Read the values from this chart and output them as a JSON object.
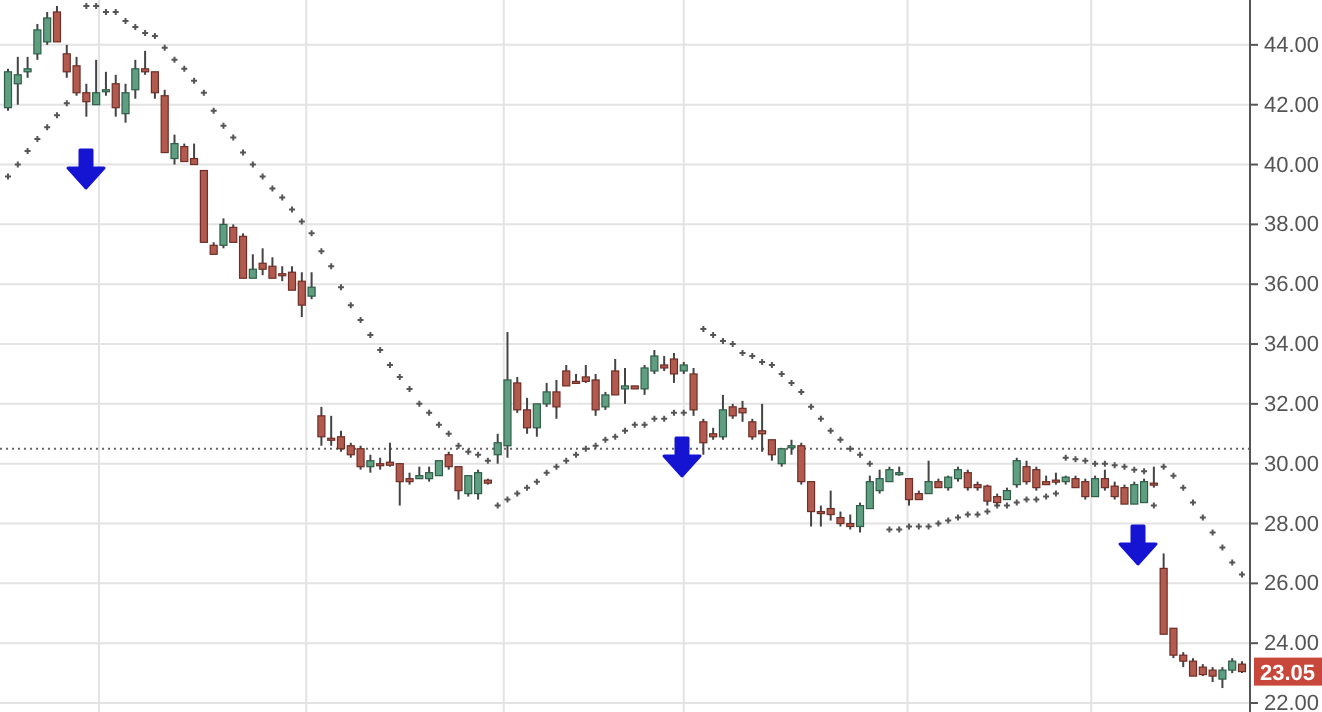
{
  "chart_data": {
    "type": "candlestick",
    "categories": [
      null,
      null,
      null,
      null,
      null,
      null,
      null,
      null,
      null,
      null,
      null,
      null,
      null,
      null,
      null,
      null,
      null,
      null,
      null,
      null,
      null,
      null,
      null,
      null,
      null,
      null,
      null,
      null,
      null,
      null,
      null,
      null,
      null,
      null,
      null,
      null,
      null,
      null,
      null,
      null,
      null,
      null,
      null,
      null,
      null,
      null,
      null,
      null,
      null,
      null,
      null,
      null,
      null,
      null,
      null,
      null,
      null,
      null,
      null,
      null,
      null,
      null,
      null,
      null,
      null,
      null,
      null,
      null,
      null,
      null,
      null,
      null,
      null,
      null,
      null,
      null,
      null,
      null,
      null,
      null,
      null,
      null,
      null,
      null,
      null,
      null,
      null,
      null,
      null,
      null,
      null,
      null,
      null,
      null,
      null,
      null,
      null,
      null,
      null,
      null,
      null,
      null,
      null,
      null,
      null,
      null,
      null,
      null,
      null,
      null,
      null,
      null,
      null,
      null,
      null,
      null,
      null,
      null,
      null,
      null,
      null,
      null,
      null,
      null,
      null,
      null,
      null
    ],
    "ohlc": [
      [
        41.9,
        43.2,
        41.8,
        43.1
      ],
      [
        42.7,
        43.6,
        42.0,
        43.0
      ],
      [
        43.1,
        43.6,
        42.9,
        43.2
      ],
      [
        43.7,
        44.7,
        43.5,
        44.5
      ],
      [
        44.1,
        45.1,
        44.0,
        44.9
      ],
      [
        45.1,
        45.3,
        44.1,
        44.1
      ],
      [
        43.7,
        44.0,
        42.9,
        43.1
      ],
      [
        43.3,
        43.6,
        42.3,
        42.4
      ],
      [
        42.4,
        42.7,
        41.6,
        42.1
      ],
      [
        42.0,
        43.5,
        42.0,
        42.4
      ],
      [
        42.5,
        43.1,
        42.3,
        42.5
      ],
      [
        42.7,
        43.0,
        41.6,
        41.9
      ],
      [
        41.7,
        42.7,
        41.4,
        42.4
      ],
      [
        42.5,
        43.5,
        42.2,
        43.2
      ],
      [
        43.2,
        43.8,
        43.0,
        43.1
      ],
      [
        43.1,
        43.1,
        42.2,
        42.4
      ],
      [
        42.3,
        42.5,
        40.4,
        40.4
      ],
      [
        40.2,
        41.0,
        40.0,
        40.7
      ],
      [
        40.6,
        40.7,
        40.1,
        40.1
      ],
      [
        40.2,
        40.7,
        40.0,
        40.0
      ],
      [
        39.8,
        39.8,
        37.4,
        37.4
      ],
      [
        37.3,
        37.4,
        37.0,
        37.0
      ],
      [
        37.3,
        38.2,
        37.2,
        38.0
      ],
      [
        37.9,
        38.0,
        37.4,
        37.4
      ],
      [
        37.6,
        37.7,
        36.2,
        36.2
      ],
      [
        36.2,
        37.0,
        36.2,
        36.5
      ],
      [
        36.7,
        37.2,
        36.3,
        36.5
      ],
      [
        36.6,
        36.9,
        36.2,
        36.2
      ],
      [
        36.35,
        36.6,
        36.1,
        36.3
      ],
      [
        36.4,
        36.6,
        35.8,
        35.8
      ],
      [
        36.1,
        36.4,
        34.9,
        35.3
      ],
      [
        35.6,
        36.4,
        35.5,
        35.9
      ],
      [
        31.6,
        31.9,
        30.6,
        30.9
      ],
      [
        30.85,
        31.6,
        30.6,
        30.8
      ],
      [
        30.9,
        31.1,
        30.4,
        30.5
      ],
      [
        30.6,
        30.7,
        30.2,
        30.3
      ],
      [
        30.5,
        30.6,
        29.8,
        29.9
      ],
      [
        29.9,
        30.3,
        29.7,
        30.1
      ],
      [
        30.0,
        30.2,
        29.8,
        29.95
      ],
      [
        30.05,
        30.7,
        29.9,
        29.95
      ],
      [
        30.0,
        30.0,
        28.6,
        29.4
      ],
      [
        29.5,
        29.7,
        29.3,
        29.4
      ],
      [
        29.5,
        29.9,
        29.5,
        29.6
      ],
      [
        29.5,
        29.9,
        29.4,
        29.7
      ],
      [
        29.6,
        30.1,
        29.6,
        30.1
      ],
      [
        30.3,
        30.4,
        29.8,
        29.9
      ],
      [
        29.9,
        29.9,
        28.8,
        29.1
      ],
      [
        29.0,
        29.6,
        28.9,
        29.6
      ],
      [
        29.0,
        29.8,
        28.8,
        29.7
      ],
      [
        29.45,
        29.5,
        29.3,
        29.35
      ],
      [
        30.3,
        31.0,
        30.0,
        30.7
      ],
      [
        30.6,
        34.4,
        30.2,
        32.8
      ],
      [
        32.7,
        32.9,
        31.7,
        31.8
      ],
      [
        31.8,
        32.2,
        31.0,
        31.2
      ],
      [
        31.2,
        32.0,
        30.9,
        32.0
      ],
      [
        32.0,
        32.7,
        31.9,
        32.4
      ],
      [
        32.4,
        32.8,
        31.5,
        31.9
      ],
      [
        33.1,
        33.3,
        32.6,
        32.6
      ],
      [
        32.75,
        33.0,
        32.7,
        32.7
      ],
      [
        32.9,
        33.3,
        32.7,
        32.75
      ],
      [
        32.8,
        33.0,
        31.6,
        31.8
      ],
      [
        31.9,
        32.4,
        31.8,
        32.3
      ],
      [
        33.1,
        33.5,
        32.3,
        32.3
      ],
      [
        32.5,
        33.2,
        32.0,
        32.6
      ],
      [
        32.6,
        32.6,
        32.5,
        32.5
      ],
      [
        32.5,
        33.3,
        32.3,
        33.2
      ],
      [
        33.1,
        33.8,
        33.0,
        33.6
      ],
      [
        33.3,
        33.6,
        33.1,
        33.2
      ],
      [
        33.5,
        33.7,
        32.7,
        33.0
      ],
      [
        33.1,
        33.4,
        33.0,
        33.3
      ],
      [
        33.0,
        33.2,
        31.6,
        31.8
      ],
      [
        31.4,
        31.5,
        30.3,
        30.7
      ],
      [
        31.0,
        31.2,
        30.8,
        30.9
      ],
      [
        30.9,
        32.3,
        30.8,
        31.8
      ],
      [
        31.9,
        32.0,
        31.5,
        31.6
      ],
      [
        31.85,
        32.1,
        31.4,
        31.7
      ],
      [
        31.4,
        31.5,
        30.8,
        30.9
      ],
      [
        31.1,
        32.0,
        30.4,
        31.0
      ],
      [
        30.8,
        30.8,
        30.1,
        30.3
      ],
      [
        30.0,
        30.5,
        29.9,
        30.5
      ],
      [
        30.55,
        30.8,
        30.3,
        30.6
      ],
      [
        30.6,
        30.7,
        29.3,
        29.4
      ],
      [
        29.4,
        29.4,
        27.9,
        28.4
      ],
      [
        28.4,
        28.6,
        27.9,
        28.35
      ],
      [
        28.5,
        29.1,
        28.1,
        28.3
      ],
      [
        28.2,
        28.4,
        27.9,
        28.0
      ],
      [
        28.0,
        28.3,
        27.8,
        27.9
      ],
      [
        27.9,
        28.7,
        27.7,
        28.6
      ],
      [
        28.5,
        29.6,
        28.5,
        29.4
      ],
      [
        29.1,
        29.8,
        29.0,
        29.5
      ],
      [
        29.4,
        29.9,
        29.4,
        29.8
      ],
      [
        29.65,
        29.9,
        29.6,
        29.7
      ],
      [
        29.5,
        29.5,
        28.6,
        28.8
      ],
      [
        29.0,
        29.1,
        28.8,
        28.8
      ],
      [
        29.0,
        30.1,
        29.0,
        29.4
      ],
      [
        29.4,
        29.5,
        29.2,
        29.2
      ],
      [
        29.2,
        29.6,
        29.1,
        29.55
      ],
      [
        29.5,
        29.9,
        29.4,
        29.8
      ],
      [
        29.7,
        29.8,
        29.1,
        29.2
      ],
      [
        29.3,
        29.4,
        29.1,
        29.2
      ],
      [
        29.25,
        29.3,
        28.6,
        28.75
      ],
      [
        28.9,
        29.0,
        28.6,
        28.7
      ],
      [
        28.8,
        29.2,
        28.8,
        29.1
      ],
      [
        29.3,
        30.2,
        29.2,
        30.1
      ],
      [
        29.9,
        30.1,
        29.3,
        29.4
      ],
      [
        29.8,
        29.9,
        29.1,
        29.2
      ],
      [
        29.4,
        29.6,
        29.3,
        29.3
      ],
      [
        29.45,
        29.7,
        29.3,
        29.4
      ],
      [
        29.4,
        29.6,
        29.3,
        29.55
      ],
      [
        29.5,
        29.6,
        29.2,
        29.2
      ],
      [
        29.4,
        29.5,
        28.8,
        28.9
      ],
      [
        28.9,
        29.6,
        28.9,
        29.5
      ],
      [
        29.5,
        29.8,
        29.1,
        29.2
      ],
      [
        29.25,
        29.4,
        28.8,
        28.9
      ],
      [
        29.2,
        29.3,
        28.65,
        28.65
      ],
      [
        28.65,
        29.4,
        28.65,
        29.3
      ],
      [
        28.7,
        29.5,
        28.7,
        29.4
      ],
      [
        29.35,
        29.9,
        29.2,
        29.3
      ],
      [
        26.5,
        27.0,
        24.3,
        24.3
      ],
      [
        24.5,
        24.5,
        23.5,
        23.6
      ],
      [
        23.6,
        23.7,
        23.2,
        23.4
      ],
      [
        23.4,
        23.5,
        22.9,
        22.9
      ],
      [
        23.2,
        23.3,
        22.9,
        22.95
      ],
      [
        23.1,
        23.2,
        22.7,
        22.9
      ],
      [
        22.8,
        23.2,
        22.5,
        23.1
      ],
      [
        23.1,
        23.5,
        23.0,
        23.4
      ],
      [
        23.3,
        23.4,
        23.0,
        23.05
      ]
    ],
    "series": [
      {
        "type": "scatter",
        "color": "#555555",
        "marker": "cross",
        "values": [
          39.6,
          40.0,
          40.45,
          40.85,
          41.25,
          41.65,
          42.05,
          null,
          45.3,
          45.3,
          45.1,
          45.1,
          44.8,
          44.6,
          44.4,
          44.3,
          43.9,
          43.5,
          43.2,
          42.8,
          42.4,
          41.8,
          41.3,
          40.9,
          40.4,
          40.0,
          39.6,
          39.2,
          38.9,
          38.5,
          38.1,
          37.7,
          37.1,
          36.6,
          35.9,
          35.3,
          34.8,
          34.3,
          33.8,
          33.3,
          32.9,
          32.5,
          32.0,
          31.7,
          31.3,
          31.0,
          30.6,
          30.4,
          30.3,
          30.1,
          28.6,
          28.8,
          29.0,
          29.2,
          29.4,
          29.7,
          29.9,
          30.1,
          30.3,
          30.5,
          30.6,
          30.8,
          30.9,
          31.1,
          31.3,
          31.3,
          31.5,
          31.5,
          31.7,
          31.7,
          null,
          34.5,
          34.3,
          34.1,
          34.0,
          33.7,
          33.6,
          33.4,
          33.3,
          33.0,
          32.7,
          32.4,
          31.9,
          31.5,
          31.1,
          30.8,
          30.5,
          30.3,
          30.0,
          null,
          27.8,
          27.8,
          27.9,
          27.9,
          27.9,
          28.0,
          28.1,
          28.2,
          28.3,
          28.3,
          28.4,
          28.6,
          28.6,
          28.7,
          28.8,
          28.8,
          28.9,
          29.0,
          30.2,
          30.15,
          30.1,
          30.0,
          30.0,
          29.95,
          29.9,
          29.8,
          29.75,
          28.6,
          29.9,
          29.6,
          29.2,
          28.7,
          28.2,
          27.7,
          27.2,
          26.7,
          26.3
        ]
      }
    ],
    "ylim": [
      21.7,
      45.5
    ],
    "yticks": [
      {
        "value": 22,
        "label": "22.00"
      },
      {
        "value": 24,
        "label": "24.00"
      },
      {
        "value": 26,
        "label": "26.00"
      },
      {
        "value": 28,
        "label": "28.00"
      },
      {
        "value": 30,
        "label": "30.00"
      },
      {
        "value": 32,
        "label": "32.00"
      },
      {
        "value": 34,
        "label": "34.00"
      },
      {
        "value": 36,
        "label": "36.00"
      },
      {
        "value": 38,
        "label": "38.00"
      },
      {
        "value": 40,
        "label": "40.00"
      },
      {
        "value": 42,
        "label": "42.00"
      },
      {
        "value": 44,
        "label": "44.00"
      }
    ],
    "grid": true,
    "ref_lines": [
      {
        "axis": "y",
        "value": 30.5,
        "color": "#666666",
        "line_style": "dotted"
      }
    ],
    "annotations": [
      {
        "text": "23.05",
        "y": 23.05
      }
    ]
  }
}
